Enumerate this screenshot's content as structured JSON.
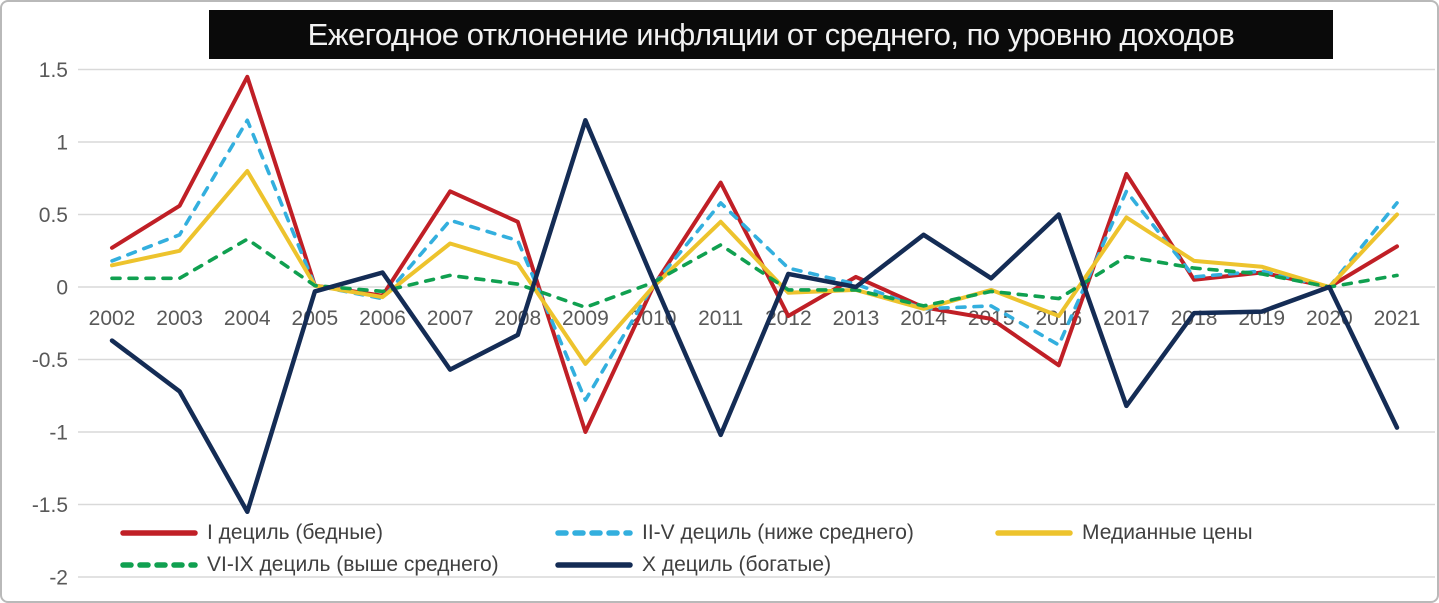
{
  "title": "Ежегодное отклонение инфляции от среднего, по уровню доходов",
  "chart_data": {
    "type": "line",
    "title": "Ежегодное отклонение инфляции от среднего, по уровню доходов",
    "x": [
      "2002",
      "2003",
      "2004",
      "2005",
      "2006",
      "2007",
      "2008",
      "2009",
      "2010",
      "2011",
      "2012",
      "2013",
      "2014",
      "2015",
      "2016",
      "2017",
      "2018",
      "2019",
      "2020",
      "2021"
    ],
    "series": [
      {
        "name": "I дециль (бедные)",
        "color": "#c01f26",
        "dash": "solid",
        "width": 4,
        "values": [
          0.27,
          0.56,
          1.45,
          0.01,
          -0.06,
          0.66,
          0.45,
          -1.0,
          0.0,
          0.72,
          -0.2,
          0.07,
          -0.14,
          -0.22,
          -0.54,
          0.78,
          0.05,
          0.1,
          0.0,
          0.28
        ]
      },
      {
        "name": "II-V дециль (ниже среднего)",
        "color": "#33afde",
        "dash": "dashed",
        "width": 3.6,
        "values": [
          0.18,
          0.36,
          1.15,
          0.01,
          -0.08,
          0.46,
          0.32,
          -0.78,
          0.01,
          0.58,
          0.13,
          0.02,
          -0.15,
          -0.13,
          -0.4,
          0.66,
          0.07,
          0.11,
          0.0,
          0.58
        ]
      },
      {
        "name": "Медианные цены",
        "color": "#edc32d",
        "dash": "solid",
        "width": 4,
        "values": [
          0.15,
          0.25,
          0.8,
          0.01,
          -0.07,
          0.3,
          0.16,
          -0.53,
          0.0,
          0.45,
          -0.04,
          -0.02,
          -0.15,
          -0.02,
          -0.2,
          0.48,
          0.18,
          0.14,
          0.0,
          0.5
        ]
      },
      {
        "name": "VI-IX дециль (выше среднего)",
        "color": "#10a050",
        "dash": "dashed",
        "width": 3.6,
        "values": [
          0.06,
          0.06,
          0.33,
          0.01,
          -0.03,
          0.08,
          0.02,
          -0.14,
          0.03,
          0.29,
          -0.02,
          -0.02,
          -0.13,
          -0.03,
          -0.08,
          0.21,
          0.13,
          0.09,
          0.0,
          0.08
        ]
      },
      {
        "name": "X дециль (богатые)",
        "color": "#142c55",
        "dash": "solid",
        "width": 4.5,
        "values": [
          -0.37,
          -0.72,
          -1.55,
          -0.03,
          0.1,
          -0.57,
          -0.33,
          1.15,
          0.05,
          -1.02,
          0.09,
          0.0,
          0.36,
          0.06,
          0.5,
          -0.82,
          -0.18,
          -0.17,
          0.0,
          -0.97
        ]
      }
    ],
    "ylim": [
      -2,
      1.5
    ],
    "yticks": [
      "1.5",
      "1",
      "0.5",
      "0",
      "-0.5",
      "-1",
      "-1.5",
      "-2"
    ],
    "xlabel": "",
    "ylabel": "",
    "grid": true,
    "grid_color": "#d9d9d9",
    "axis_label_color": "#595959",
    "legend_position": "bottom",
    "title_bg": "#0a0a0a",
    "title_fg": "#f2f2f2"
  },
  "legend": {
    "rows": [
      {
        "top": 520,
        "items": [
          {
            "left": 118,
            "series": 0
          },
          {
            "left": 553,
            "series": 1
          },
          {
            "left": 993,
            "series": 2
          }
        ]
      },
      {
        "top": 552,
        "items": [
          {
            "left": 118,
            "series": 3
          },
          {
            "left": 553,
            "series": 4
          }
        ]
      }
    ]
  }
}
